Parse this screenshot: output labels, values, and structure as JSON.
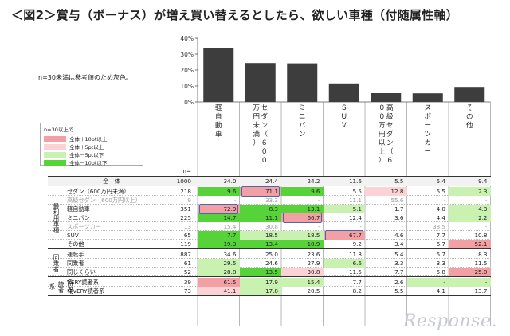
{
  "title": "＜図2＞賞与（ボーナス）が増え買い替えるとしたら、欲しい車種（付随属性軸）",
  "note": "n=30未満は参考値のため灰色。",
  "colors": {
    "bar": "#3d3d3d",
    "pos10": "#f3a0a5",
    "pos5": "#fbd3d5",
    "neg5": "#c9f2b1",
    "neg10": "#57d33a",
    "gray_text": "#999999",
    "highlight": "#4a66b0"
  },
  "legend": {
    "title": "n=30以上で",
    "items": [
      {
        "label": "全体＋10pt以上",
        "color": "pos10"
      },
      {
        "label": "全体＋5pt以上",
        "color": "pos5"
      },
      {
        "label": "全体－5pt以下",
        "color": "neg5"
      },
      {
        "label": "全体－10pt以下",
        "color": "neg10"
      }
    ]
  },
  "chart_data": {
    "type": "bar",
    "categories": [
      "軽自動車",
      "セダン（600万円未満）",
      "ミニバン",
      "SUV",
      "高級セダン（600万円以上）",
      "スポーツカー",
      "その他"
    ],
    "category_labels": [
      "軽自動車",
      "セダン（６００万円未満）",
      "ミニバン",
      "ＳＵＶ",
      "高級セダン（６００万円以上）",
      "スポーツカー",
      "その他"
    ],
    "values": [
      34.0,
      24.4,
      24.2,
      11.6,
      5.5,
      5.4,
      9.4
    ],
    "ylim": [
      0,
      40
    ],
    "yticks": [
      "0%",
      "10%",
      "20%",
      "30%",
      "40%"
    ],
    "ytick_values": [
      0,
      10,
      20,
      30,
      40
    ]
  },
  "table": {
    "n_header": "n=",
    "total": {
      "label": "全　体",
      "n": "1000",
      "values": [
        "34.0",
        "24.4",
        "24.2",
        "11.6",
        "5.5",
        "5.4",
        "9.4"
      ]
    },
    "groups": [
      {
        "label": "最利用車種",
        "rows": [
          {
            "label": "セダン（600万円未満）",
            "n": "218",
            "values": [
              "9.6",
              "71.1",
              "9.6",
              "5.5",
              "12.8",
              "5.5",
              "2.3"
            ],
            "colors": [
              "neg10",
              "pos10",
              "neg10",
              "",
              "pos5",
              "",
              "neg5"
            ]
          },
          {
            "label": "高級セダン（600万円以上）",
            "n": "9",
            "gray": true,
            "values": [
              "-",
              "33.3",
              "-",
              "11.1",
              "55.6",
              "-",
              "-"
            ],
            "colors": [
              "",
              "",
              "",
              "",
              "",
              "",
              ""
            ]
          },
          {
            "label": "軽自動車",
            "n": "351",
            "values": [
              "72.9",
              "8.3",
              "13.1",
              "5.1",
              "1.7",
              "4.0",
              "4.3"
            ],
            "colors": [
              "pos10",
              "neg10",
              "neg10",
              "neg5",
              "",
              "",
              "neg5"
            ]
          },
          {
            "label": "ミニバン",
            "n": "225",
            "values": [
              "14.7",
              "11.1",
              "66.7",
              "12.4",
              "3.6",
              "4.4",
              "2.2"
            ],
            "colors": [
              "neg10",
              "neg10",
              "pos10",
              "",
              "",
              "",
              "neg5"
            ]
          },
          {
            "label": "スポーツカー",
            "n": "13",
            "gray": true,
            "values": [
              "15.4",
              "30.8",
              "-",
              "-",
              "-",
              "38.5",
              "-"
            ],
            "colors": [
              "",
              "",
              "",
              "",
              "",
              "",
              ""
            ]
          },
          {
            "label": "SUV",
            "n": "65",
            "values": [
              "7.7",
              "18.5",
              "18.5",
              "67.7",
              "4.6",
              "7.7",
              "10.8"
            ],
            "colors": [
              "neg10",
              "neg5",
              "neg5",
              "pos10",
              "",
              "",
              ""
            ]
          },
          {
            "label": "その他",
            "n": "119",
            "values": [
              "19.3",
              "13.4",
              "10.9",
              "9.2",
              "3.4",
              "6.7",
              "52.1"
            ],
            "colors": [
              "neg10",
              "neg10",
              "neg10",
              "",
              "",
              "",
              "pos10"
            ]
          }
        ]
      },
      {
        "label": "同乗者",
        "rows": [
          {
            "label": "運転手",
            "n": "887",
            "values": [
              "34.6",
              "25.0",
              "23.6",
              "11.8",
              "5.4",
              "5.7",
              "8.3"
            ],
            "colors": [
              "",
              "",
              "",
              "",
              "",
              "",
              ""
            ]
          },
          {
            "label": "同乗者",
            "n": "61",
            "values": [
              "29.5",
              "24.6",
              "27.9",
              "6.6",
              "3.3",
              "3.3",
              "11.5"
            ],
            "colors": [
              "neg5",
              "",
              "",
              "neg5",
              "",
              "",
              ""
            ]
          },
          {
            "label": "同じくらい",
            "n": "52",
            "values": [
              "28.8",
              "13.5",
              "30.8",
              "11.5",
              "7.7",
              "5.8",
              "25.0"
            ],
            "colors": [
              "neg5",
              "neg10",
              "pos5",
              "",
              "",
              "",
              "pos10"
            ]
          }
        ]
      },
      {
        "label": "VERY読者系",
        "rows": [
          {
            "label": "VERY読者系",
            "n": "39",
            "values": [
              "61.5",
              "17.9",
              "15.4",
              "7.7",
              "2.6",
              "-",
              "-"
            ],
            "colors": [
              "pos10",
              "neg5",
              "neg5",
              "",
              "",
              "neg5",
              "neg5"
            ]
          },
          {
            "label": "非VERY読者系",
            "n": "73",
            "values": [
              "41.1",
              "17.8",
              "20.5",
              "8.2",
              "5.5",
              "4.1",
              "13.7"
            ],
            "colors": [
              "pos5",
              "neg5",
              "",
              "",
              "",
              "",
              ""
            ]
          }
        ]
      }
    ]
  },
  "logo_text": "Response."
}
